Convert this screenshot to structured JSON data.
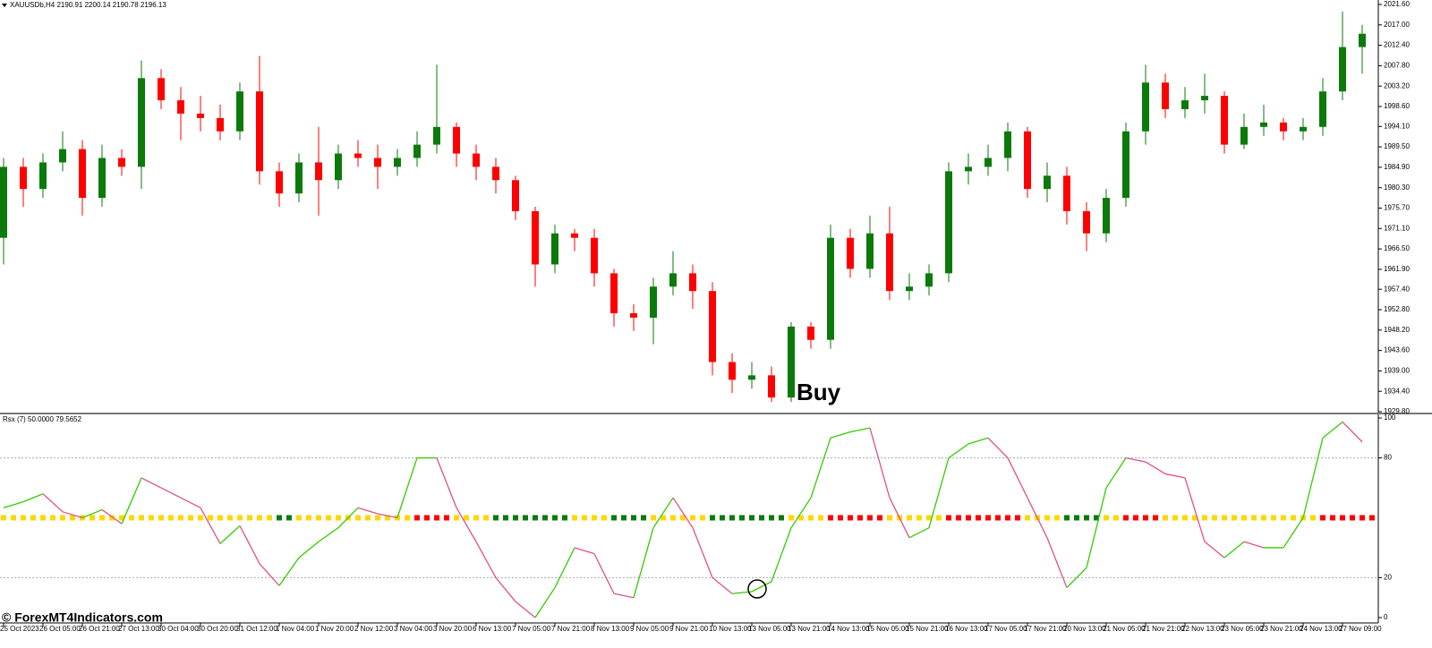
{
  "chart_data": [
    {
      "type": "candlestick",
      "title": "XAUUSDb,H4  2190.91 2200.14 2190.78 2196.13",
      "categories": [
        "25 Oct 2023",
        null,
        "26 Oct 05:00",
        null,
        "26 Oct 21:00",
        null,
        "27 Oct 13:00",
        null,
        "30 Oct 04:00",
        null,
        "30 Oct 20:00",
        null,
        "31 Oct 12:00",
        null,
        "1 Nov 04:00",
        null,
        "1 Nov 20:00",
        null,
        "2 Nov 12:00",
        null,
        "3 Nov 04:00",
        null,
        "3 Nov 20:00",
        null,
        "6 Nov 13:00",
        null,
        "7 Nov 05:00",
        null,
        "7 Nov 21:00",
        null,
        "8 Nov 13:00",
        null,
        "9 Nov 05:00",
        null,
        "9 Nov 21:00",
        null,
        "10 Nov 13:00",
        null,
        "13 Nov 05:00",
        null,
        "13 Nov 21:00",
        null,
        "14 Nov 13:00",
        null,
        "15 Nov 05:00",
        null,
        "15 Nov 21:00",
        null,
        "16 Nov 13:00",
        null,
        "17 Nov 05:00",
        null,
        "17 Nov 21:00",
        null,
        "20 Nov 13:00",
        null,
        "21 Nov 05:00",
        null,
        "21 Nov 21:00",
        null,
        "22 Nov 13:00",
        null,
        "23 Nov 05:00",
        null,
        "23 Nov 21:00",
        null,
        "24 Nov 13:00",
        null,
        "27 Nov 09:00",
        null
      ],
      "open": [
        1969,
        1985,
        1980,
        1986,
        1989,
        1978,
        1987,
        1985,
        2005,
        2000,
        1997,
        1996,
        1993,
        2002,
        1984,
        1979,
        1986,
        1982,
        1988,
        1987,
        1985,
        1987,
        1990,
        1994,
        1988,
        1985,
        1982,
        1975,
        1963,
        1970,
        1969,
        1961,
        1952,
        1951,
        1958,
        1961,
        1957,
        1941,
        1937,
        1938,
        1933,
        1949,
        1946,
        1969,
        1962,
        1970,
        1957,
        1958,
        1961,
        1984,
        1985,
        1987,
        1993,
        1980,
        1983,
        1975,
        1970,
        1978,
        1993,
        2004,
        1998,
        2000,
        2001,
        1990,
        1994,
        1995,
        1993,
        1994,
        2002,
        2012
      ],
      "high": [
        1987,
        1987,
        1988,
        1993,
        1991,
        1990,
        1989,
        2009,
        2007,
        2003,
        2001,
        1999,
        2004,
        2010,
        1986,
        1988,
        1994,
        1990,
        1991,
        1990,
        1989,
        1993,
        2008,
        1995,
        1990,
        1987,
        1983,
        1976,
        1972,
        1971,
        1971,
        1962,
        1954,
        1960,
        1966,
        1963,
        1959,
        1943,
        1941,
        1940,
        1950,
        1950,
        1972,
        1971,
        1974,
        1976,
        1961,
        1963,
        1986,
        1988,
        1990,
        1995,
        1994,
        1986,
        1985,
        1977,
        1980,
        1995,
        2008,
        2006,
        2003,
        2006,
        2002,
        1997,
        1999,
        1996,
        1996,
        2005,
        2020,
        2017
      ],
      "low": [
        1963,
        1976,
        1978,
        1984,
        1974,
        1976,
        1983,
        1980,
        1998,
        1991,
        1993,
        1991,
        1991,
        1981,
        1976,
        1977,
        1974,
        1980,
        1985,
        1980,
        1983,
        1985,
        1988,
        1985,
        1982,
        1979,
        1973,
        1958,
        1961,
        1966,
        1958,
        1949,
        1948,
        1945,
        1956,
        1953,
        1938,
        1934,
        1935,
        1932,
        1932,
        1944,
        1944,
        1960,
        1960,
        1955,
        1955,
        1956,
        1959,
        1981,
        1983,
        1984,
        1978,
        1977,
        1972,
        1966,
        1968,
        1976,
        1990,
        1996,
        1996,
        1997,
        1988,
        1989,
        1992,
        1991,
        1991,
        1992,
        2000,
        2006
      ],
      "close": [
        1985,
        1980,
        1986,
        1989,
        1978,
        1987,
        1985,
        2005,
        2000,
        1997,
        1996,
        1993,
        2002,
        1984,
        1979,
        1986,
        1982,
        1988,
        1987,
        1985,
        1987,
        1990,
        1994,
        1988,
        1985,
        1982,
        1975,
        1963,
        1970,
        1969,
        1961,
        1952,
        1951,
        1958,
        1961,
        1957,
        1941,
        1937,
        1938,
        1933,
        1949,
        1946,
        1969,
        1962,
        1970,
        1957,
        1958,
        1961,
        1984,
        1985,
        1987,
        1993,
        1980,
        1983,
        1975,
        1970,
        1978,
        1993,
        2004,
        1998,
        2000,
        2001,
        1990,
        1994,
        1995,
        1993,
        1994,
        2002,
        2012,
        2015
      ],
      "up_color": "#0b7a0b",
      "down_color": "#ff0000",
      "ylim": [
        1929.8,
        2021.6
      ],
      "yticks": [
        {
          "value": 2021.6,
          "label": "2021.60"
        },
        {
          "value": 2017.0,
          "label": "2017.00"
        },
        {
          "value": 2012.4,
          "label": "2012.40"
        },
        {
          "value": 2007.8,
          "label": "2007.80"
        },
        {
          "value": 2003.2,
          "label": "2003.20"
        },
        {
          "value": 1998.6,
          "label": "1998.60"
        },
        {
          "value": 1994.1,
          "label": "1994.10"
        },
        {
          "value": 1989.5,
          "label": "1989.50"
        },
        {
          "value": 1984.9,
          "label": "1984.90"
        },
        {
          "value": 1980.3,
          "label": "1980.30"
        },
        {
          "value": 1975.7,
          "label": "1975.70"
        },
        {
          "value": 1971.1,
          "label": "1971.10"
        },
        {
          "value": 1966.5,
          "label": "1966.50"
        },
        {
          "value": 1961.9,
          "label": "1961.90"
        },
        {
          "value": 1957.4,
          "label": "1957.40"
        },
        {
          "value": 1952.8,
          "label": "1952.80"
        },
        {
          "value": 1948.2,
          "label": "1948.20"
        },
        {
          "value": 1943.6,
          "label": "1943.60"
        },
        {
          "value": 1939,
          "label": "1939.00"
        },
        {
          "value": 1934.4,
          "label": "1934.40"
        },
        {
          "value": 1929.8,
          "label": "1929.80"
        }
      ],
      "annotation": {
        "text": "Buy",
        "index": 40
      },
      "watermark": "© ForexMT4Indicators.com"
    },
    {
      "type": "line",
      "title": "Rsx (7) 50.0000 79.5652",
      "values": [
        55,
        58,
        62,
        53,
        50,
        54,
        47,
        70,
        65,
        60,
        55,
        37,
        46,
        27,
        16,
        30,
        38,
        45,
        55,
        52,
        50,
        80,
        80,
        55,
        38,
        20,
        8,
        0,
        15,
        35,
        32,
        12,
        10,
        45,
        60,
        45,
        20,
        12,
        13,
        18,
        45,
        60,
        90,
        93,
        95,
        60,
        40,
        45,
        80,
        87,
        90,
        80,
        60,
        40,
        15,
        25,
        65,
        80,
        78,
        72,
        70,
        38,
        30,
        38,
        35,
        35,
        50,
        90,
        98,
        88
      ],
      "rising_color": "#33cc00",
      "falling_color": "#e0508a",
      "ylim": [
        0,
        100
      ],
      "yticks": [
        100,
        80,
        20,
        0
      ],
      "levels": [
        80,
        20
      ],
      "signal_level": 50,
      "signal_colors": {
        "neutral": "#ffd700",
        "overbought": "#ff0000",
        "oversold": "#0b7a0b"
      },
      "circle_index": 38
    }
  ]
}
